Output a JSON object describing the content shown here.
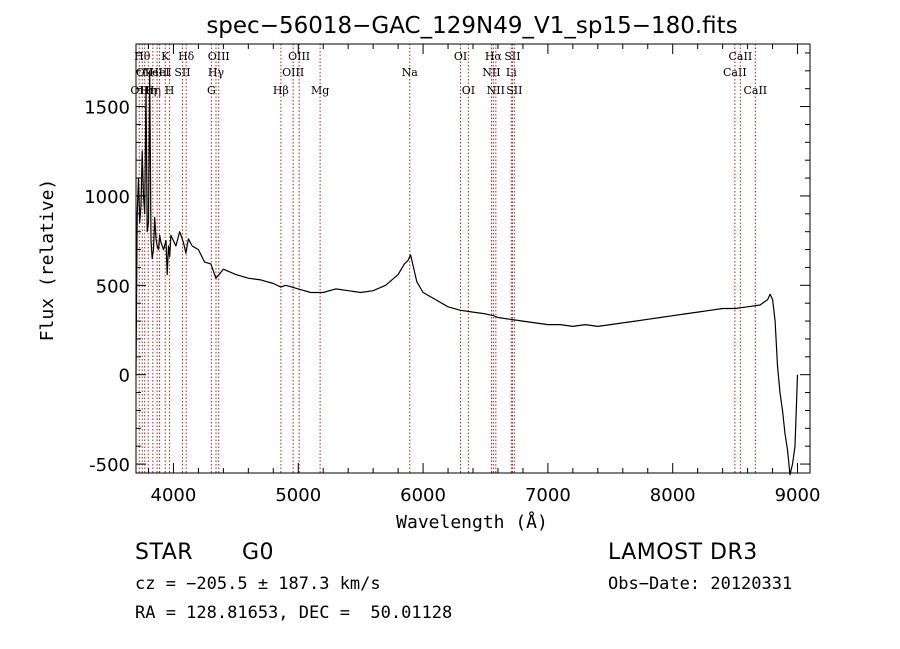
{
  "chart_data": {
    "type": "line",
    "title": "spec−56018−GAC_129N49_V1_sp15−180.fits",
    "xlabel": "Wavelength (Å)",
    "ylabel": "Flux (relative)",
    "xlim": [
      3700,
      9100
    ],
    "ylim": [
      -550,
      1850
    ],
    "xticks": [
      4000,
      5000,
      6000,
      7000,
      8000,
      9000
    ],
    "yticks": [
      -500,
      0,
      500,
      1000,
      1500
    ],
    "grid": false,
    "series": [
      {
        "name": "flux",
        "x": [
          3700,
          3710,
          3720,
          3730,
          3740,
          3750,
          3760,
          3770,
          3780,
          3790,
          3800,
          3810,
          3820,
          3830,
          3840,
          3850,
          3860,
          3870,
          3880,
          3890,
          3900,
          3920,
          3940,
          3950,
          3960,
          3970,
          3980,
          4000,
          4020,
          4050,
          4080,
          4100,
          4120,
          4150,
          4200,
          4250,
          4300,
          4340,
          4400,
          4500,
          4600,
          4700,
          4800,
          4861,
          4900,
          5000,
          5100,
          5200,
          5300,
          5400,
          5500,
          5600,
          5700,
          5800,
          5850,
          5880,
          5900,
          5920,
          5950,
          6000,
          6100,
          6200,
          6300,
          6400,
          6500,
          6563,
          6600,
          6700,
          6800,
          6900,
          7000,
          7100,
          7200,
          7300,
          7400,
          7500,
          7600,
          7700,
          7800,
          7900,
          8000,
          8100,
          8200,
          8300,
          8400,
          8500,
          8600,
          8700,
          8760,
          8780,
          8800,
          8820,
          8840,
          8860,
          8880,
          8900,
          8920,
          8940,
          8960,
          8980,
          9000
        ],
        "values": [
          0,
          900,
          1100,
          850,
          950,
          1250,
          1000,
          900,
          1600,
          800,
          850,
          1700,
          750,
          650,
          700,
          880,
          760,
          720,
          700,
          780,
          740,
          700,
          750,
          560,
          720,
          660,
          780,
          750,
          720,
          800,
          740,
          680,
          760,
          720,
          700,
          630,
          620,
          540,
          590,
          560,
          540,
          530,
          510,
          490,
          500,
          480,
          460,
          460,
          480,
          470,
          460,
          470,
          500,
          560,
          620,
          640,
          670,
          610,
          520,
          460,
          420,
          380,
          360,
          350,
          340,
          330,
          320,
          310,
          300,
          290,
          280,
          280,
          270,
          280,
          270,
          280,
          290,
          300,
          310,
          320,
          330,
          340,
          350,
          360,
          370,
          370,
          380,
          390,
          420,
          450,
          420,
          300,
          50,
          -100,
          -200,
          -330,
          -420,
          -560,
          -500,
          -400,
          0
        ]
      }
    ],
    "lines": [
      {
        "x": 3726,
        "label": "OII",
        "row": 3
      },
      {
        "x": 3750,
        "label": "Hθ",
        "row": 1
      },
      {
        "x": 3770,
        "label": "OII",
        "row": 2
      },
      {
        "x": 3798,
        "label": "Hη",
        "row": 3
      },
      {
        "x": 3835,
        "label": "Hη",
        "row": 3
      },
      {
        "x": 3869,
        "label": "NeIII",
        "row": 2
      },
      {
        "x": 3889,
        "label": "HeI",
        "row": 2
      },
      {
        "x": 3934,
        "label": "K",
        "row": 1
      },
      {
        "x": 3969,
        "label": "H",
        "row": 3
      },
      {
        "x": 4072,
        "label": "SII",
        "row": 2
      },
      {
        "x": 4102,
        "label": "Hδ",
        "row": 1
      },
      {
        "x": 4304,
        "label": "G",
        "row": 3
      },
      {
        "x": 4341,
        "label": "Hγ",
        "row": 2
      },
      {
        "x": 4363,
        "label": "OIII",
        "row": 1
      },
      {
        "x": 4861,
        "label": "Hβ",
        "row": 3
      },
      {
        "x": 4959,
        "label": "OIII",
        "row": 2
      },
      {
        "x": 5007,
        "label": "OIII",
        "row": 1
      },
      {
        "x": 5175,
        "label": "Mg",
        "row": 3
      },
      {
        "x": 5893,
        "label": "Na",
        "row": 2
      },
      {
        "x": 6300,
        "label": "OI",
        "row": 1
      },
      {
        "x": 6363,
        "label": "OI",
        "row": 3
      },
      {
        "x": 6548,
        "label": "NII",
        "row": 2
      },
      {
        "x": 6563,
        "label": "Hα",
        "row": 1
      },
      {
        "x": 6583,
        "label": "NII",
        "row": 3
      },
      {
        "x": 6707,
        "label": "Li",
        "row": 2
      },
      {
        "x": 6716,
        "label": "SII",
        "row": 1
      },
      {
        "x": 6731,
        "label": "SII",
        "row": 3
      },
      {
        "x": 8498,
        "label": "CaII",
        "row": 2
      },
      {
        "x": 8542,
        "label": "CaII",
        "row": 1
      },
      {
        "x": 8662,
        "label": "CaII",
        "row": 3
      }
    ]
  },
  "info": {
    "class": "STAR",
    "subclass": "G0",
    "survey": "LAMOST DR3",
    "cz": "cz = −205.5 ± 187.3 km/s",
    "obs_date": "Obs−Date: 20120331",
    "coords": "RA = 128.81653, DEC =  50.01128"
  }
}
